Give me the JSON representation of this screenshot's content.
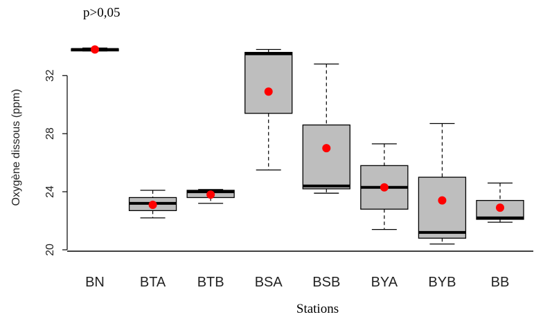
{
  "annotation": "p>0,05",
  "chart_data": {
    "type": "box",
    "title": "",
    "xlabel": "Stations",
    "ylabel": "Oxygène dissous (ppm)",
    "ylim": [
      20,
      34.3
    ],
    "yticks": [
      20,
      24,
      28,
      32
    ],
    "grid": false,
    "categories": [
      "BN",
      "BTA",
      "BTB",
      "BSA",
      "BSB",
      "BYA",
      "BYB",
      "BB"
    ],
    "boxes": [
      {
        "station": "BN",
        "min": 33.7,
        "q1": 33.7,
        "median": 33.8,
        "q3": 33.85,
        "max": 33.9,
        "mean": 33.8
      },
      {
        "station": "BTA",
        "min": 22.2,
        "q1": 22.7,
        "median": 23.2,
        "q3": 23.6,
        "max": 24.1,
        "mean": 23.1
      },
      {
        "station": "BTB",
        "min": 23.2,
        "q1": 23.6,
        "median": 24.0,
        "q3": 24.1,
        "max": 24.15,
        "mean": 23.8
      },
      {
        "station": "BSA",
        "min": 25.5,
        "q1": 29.4,
        "median": 33.5,
        "q3": 33.6,
        "max": 33.8,
        "mean": 30.9
      },
      {
        "station": "BSB",
        "min": 23.9,
        "q1": 24.2,
        "median": 24.4,
        "q3": 28.6,
        "max": 32.8,
        "mean": 27.0
      },
      {
        "station": "BYA",
        "min": 21.4,
        "q1": 22.8,
        "median": 24.3,
        "q3": 25.8,
        "max": 27.3,
        "mean": 24.3
      },
      {
        "station": "BYB",
        "min": 20.4,
        "q1": 20.8,
        "median": 21.2,
        "q3": 25.0,
        "max": 28.7,
        "mean": 23.4
      },
      {
        "station": "BB",
        "min": 21.9,
        "q1": 22.1,
        "median": 22.2,
        "q3": 23.4,
        "max": 24.6,
        "mean": 22.9
      }
    ],
    "colors": {
      "box_fill": "#bebebe",
      "box_stroke": "#000000",
      "mean_point": "#ff0000",
      "axis": "#000000"
    }
  }
}
